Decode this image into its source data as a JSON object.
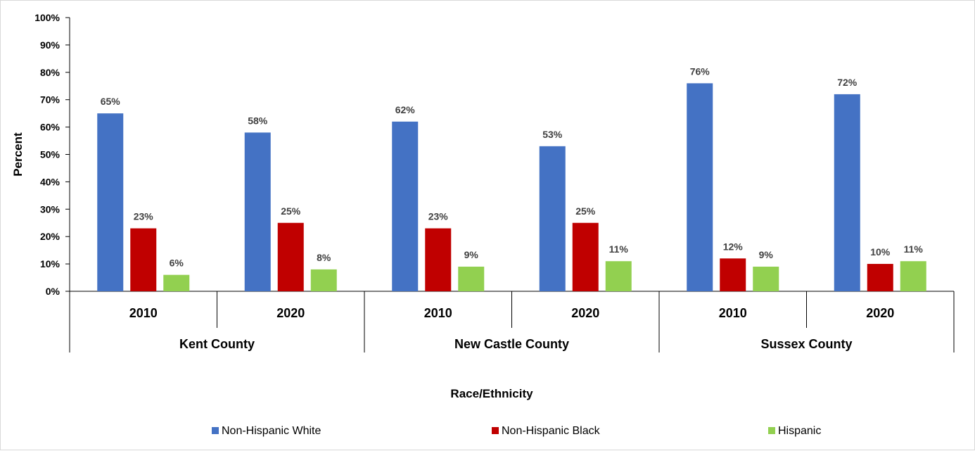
{
  "chart_data": {
    "type": "bar",
    "groups": [
      {
        "name": "Kent County",
        "categories": [
          "2010",
          "2020"
        ]
      },
      {
        "name": "New Castle County",
        "categories": [
          "2010",
          "2020"
        ]
      },
      {
        "name": "Sussex County",
        "categories": [
          "2010",
          "2020"
        ]
      }
    ],
    "series": [
      {
        "name": "Non-Hispanic White",
        "color": "#4472C4",
        "values": [
          65,
          58,
          62,
          53,
          76,
          72
        ],
        "labels": [
          "65%",
          "58%",
          "62%",
          "53%",
          "76%",
          "72%"
        ]
      },
      {
        "name": "Non-Hispanic Black",
        "color": "#C00000",
        "values": [
          23,
          25,
          23,
          25,
          12,
          10
        ],
        "labels": [
          "23%",
          "25%",
          "23%",
          "25%",
          "12%",
          "10%"
        ]
      },
      {
        "name": "Hispanic",
        "color": "#92D050",
        "values": [
          6,
          8,
          9,
          11,
          9,
          11
        ],
        "labels": [
          "6%",
          "8%",
          "9%",
          "11%",
          "9%",
          "11%"
        ]
      }
    ],
    "xlabel": "Race/Ethnicity",
    "ylabel": "Percent",
    "ylim": [
      0,
      100
    ],
    "yticks": [
      "0%",
      "10%",
      "20%",
      "30%",
      "40%",
      "50%",
      "60%",
      "70%",
      "80%",
      "90%",
      "100%"
    ],
    "grid": false,
    "legend": "bottom"
  }
}
